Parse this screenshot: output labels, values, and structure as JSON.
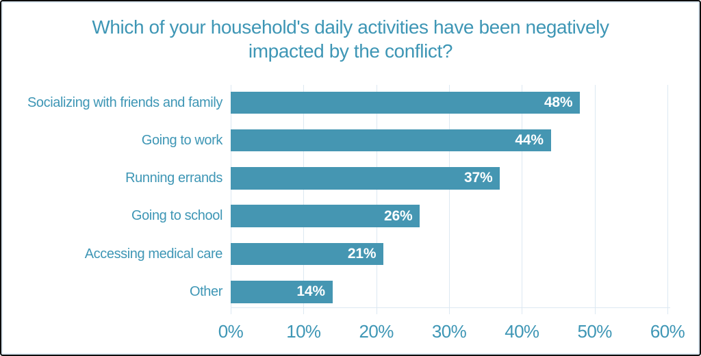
{
  "chart_data": {
    "type": "bar",
    "orientation": "horizontal",
    "title": "Which of your household's daily activities have been negatively impacted by the conflict?",
    "title_lines": [
      "Which of your household's daily activities have been negatively",
      "impacted by the conflict?"
    ],
    "categories": [
      "Socializing with friends and family",
      "Going to work",
      "Running errands",
      "Going to school",
      "Accessing medical care",
      "Other"
    ],
    "values": [
      48,
      44,
      37,
      26,
      21,
      14
    ],
    "value_labels": [
      "48%",
      "44%",
      "37%",
      "26%",
      "21%",
      "14%"
    ],
    "x_ticks": [
      "0%",
      "10%",
      "20%",
      "30%",
      "40%",
      "50%",
      "60%"
    ],
    "x_tick_values": [
      0,
      10,
      20,
      30,
      40,
      50,
      60
    ],
    "xlim": [
      0,
      60
    ],
    "xlabel": "",
    "ylabel": "",
    "grid": "vertical",
    "legend": "none"
  },
  "colors": {
    "bar": "#4596b2",
    "text": "#3e96b5",
    "gridline": "#dce8f2",
    "value_label": "#ffffff",
    "border": "#0d0d0d",
    "background": "#ffffff"
  }
}
